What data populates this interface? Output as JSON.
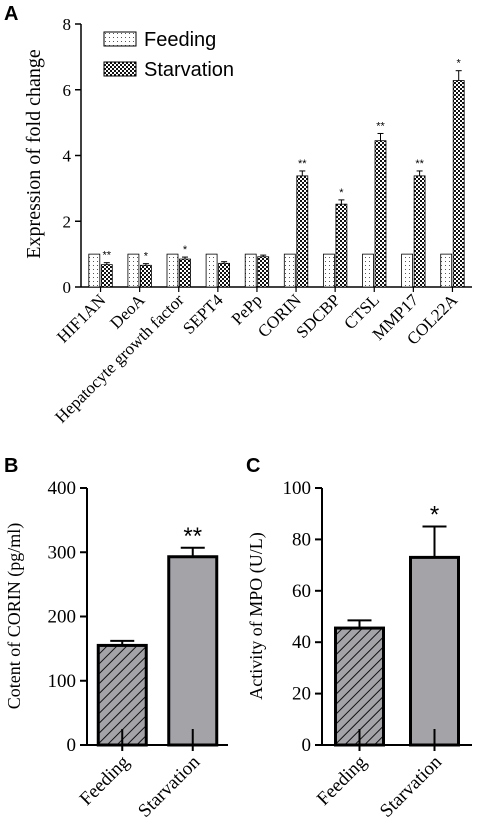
{
  "chart_data": [
    {
      "panel": "A",
      "type": "bar",
      "categories": [
        "HIF1AN",
        "DeoA",
        "Hepatocyte growth factor",
        "SEPT4",
        "PePp",
        "CORIN",
        "SDCBP",
        "CTSL",
        "MMP17",
        "COL22A"
      ],
      "series": [
        {
          "name": "Feeding",
          "values": [
            1,
            1,
            1,
            1,
            1,
            1,
            1,
            1,
            1,
            1
          ],
          "errors": [
            0,
            0,
            0,
            0,
            0,
            0,
            0,
            0,
            0,
            0
          ]
        },
        {
          "name": "Starvation",
          "values": [
            0.68,
            0.66,
            0.85,
            0.72,
            0.92,
            3.38,
            2.52,
            4.45,
            3.38,
            6.28
          ],
          "errors": [
            0.06,
            0.05,
            0.06,
            0.05,
            0.05,
            0.15,
            0.13,
            0.22,
            0.15,
            0.3
          ]
        }
      ],
      "significance": [
        "**",
        "*",
        "*",
        "",
        "",
        "**",
        "*",
        "**",
        "**",
        "*"
      ],
      "ylabel": "Expression of fold change",
      "ylim": [
        0,
        8
      ],
      "yticks": [
        0,
        2,
        4,
        6,
        8
      ],
      "legend_position": "top-left"
    },
    {
      "panel": "B",
      "type": "bar",
      "categories": [
        "Feeding",
        "Starvation"
      ],
      "values": [
        155,
        293
      ],
      "errors": [
        7,
        14
      ],
      "significance": [
        "",
        "**"
      ],
      "ylabel": "Cotent of CORIN (pg/ml)",
      "ylim": [
        0,
        400
      ],
      "yticks": [
        0,
        100,
        200,
        300,
        400
      ]
    },
    {
      "panel": "C",
      "type": "bar",
      "categories": [
        "Feeding",
        "Starvation"
      ],
      "values": [
        45.5,
        73
      ],
      "errors": [
        3,
        12
      ],
      "significance": [
        "",
        "*"
      ],
      "ylabel": "Activity of MPO (U/L)",
      "ylim": [
        0,
        100
      ],
      "yticks": [
        0,
        20,
        40,
        60,
        80,
        100
      ]
    }
  ],
  "panel_labels": {
    "a": "A",
    "b": "B",
    "c": "C"
  },
  "colors": {
    "bar_fill_bc": "#a3a3a8",
    "frame": "#000000",
    "feeding_fill": "#ffffff",
    "starvation_fill": "#ffffff"
  }
}
